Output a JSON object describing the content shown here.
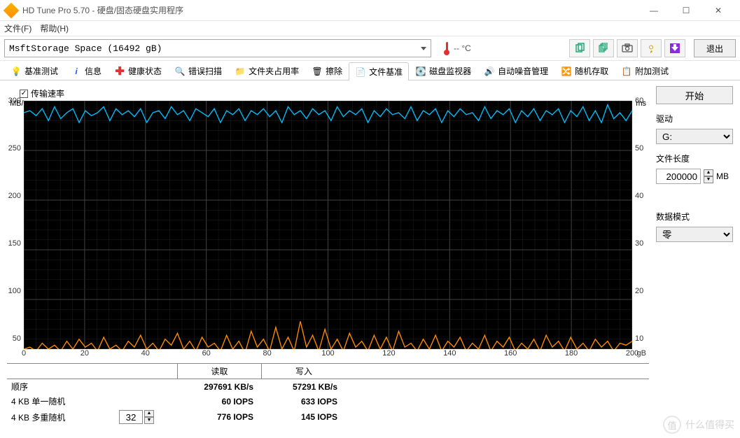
{
  "titlebar": {
    "title": "HD Tune Pro 5.70 - 硬盘/固态硬盘实用程序"
  },
  "menubar": {
    "file": "文件(F)",
    "help": "帮助(H)"
  },
  "toolbar": {
    "drive_name": "MsftStorage Space (16492 gB)",
    "temp_text": "-- °C",
    "exit": "退出"
  },
  "tabs": [
    {
      "label": "基准测试"
    },
    {
      "label": "信息"
    },
    {
      "label": "健康状态"
    },
    {
      "label": "错误扫描"
    },
    {
      "label": "文件夹占用率"
    },
    {
      "label": "擦除"
    },
    {
      "label": "文件基准",
      "active": true
    },
    {
      "label": "磁盘监视器"
    },
    {
      "label": "自动噪音管理"
    },
    {
      "label": "随机存取"
    },
    {
      "label": "附加测试"
    }
  ],
  "sidebar": {
    "start": "开始",
    "drive_label": "驱动",
    "drive_value": "G:",
    "filelen_label": "文件长度",
    "filelen_value": "200000",
    "filelen_unit": "MB",
    "pattern_label": "数据模式",
    "pattern_value": "零"
  },
  "checkbox": {
    "transfer_rate": "传输速率",
    "checked": true
  },
  "chart": {
    "bg": "#000000",
    "grid_color": "#404040",
    "grid_minor_color": "#202020",
    "line_read_color": "#00bfff",
    "line_write_color": "#ff8c00",
    "y_left_label": "MB/s",
    "y_right_label": "ms",
    "y_left_min": 50,
    "y_left_max": 300,
    "y_left_ticks": [
      50,
      100,
      150,
      200,
      250,
      300
    ],
    "y_right_min": 10,
    "y_right_max": 60,
    "y_right_ticks": [
      10,
      20,
      30,
      40,
      50,
      60
    ],
    "x_min": 0,
    "x_max": 200,
    "x_unit": "gB",
    "x_ticks": [
      0,
      20,
      40,
      60,
      80,
      100,
      120,
      140,
      160,
      180,
      200
    ],
    "series_read": [
      288,
      290,
      285,
      292,
      280,
      294,
      282,
      288,
      292,
      278,
      290,
      285,
      288,
      294,
      280,
      292,
      286,
      290,
      284,
      292,
      278,
      288,
      290,
      282,
      294,
      286,
      290,
      280,
      292,
      288,
      284,
      292,
      278,
      290,
      286,
      292,
      280,
      290,
      286,
      292,
      284,
      290,
      278,
      294,
      286,
      290,
      282,
      292,
      286,
      290,
      280,
      294,
      284,
      290,
      286,
      292,
      278,
      290,
      284,
      292,
      286,
      288,
      282,
      294,
      280,
      290,
      286,
      292,
      278,
      290,
      284,
      292,
      286,
      288,
      280,
      294,
      282,
      290,
      286,
      292,
      278,
      290,
      284,
      292,
      280,
      290,
      286,
      292,
      278,
      290,
      284,
      294,
      280,
      290,
      278,
      296,
      282,
      288,
      280,
      290
    ],
    "series_write": [
      50,
      52,
      48,
      56,
      50,
      54,
      48,
      58,
      50,
      60,
      52,
      56,
      48,
      62,
      50,
      54,
      48,
      58,
      52,
      64,
      50,
      56,
      48,
      60,
      54,
      66,
      50,
      58,
      48,
      62,
      52,
      56,
      48,
      64,
      50,
      58,
      46,
      68,
      52,
      60,
      48,
      72,
      50,
      62,
      48,
      78,
      52,
      64,
      48,
      70,
      50,
      60,
      48,
      66,
      52,
      58,
      48,
      64,
      50,
      62,
      48,
      68,
      52,
      56,
      48,
      60,
      50,
      64,
      48,
      58,
      52,
      62,
      48,
      56,
      50,
      64,
      48,
      58,
      52,
      62,
      48,
      56,
      50,
      60,
      48,
      64,
      52,
      58,
      48,
      62,
      50,
      56,
      48,
      60,
      52,
      58,
      48,
      56,
      54,
      58
    ]
  },
  "results": {
    "headers": {
      "blank": "",
      "read": "读取",
      "write": "写入"
    },
    "rows": [
      {
        "label": "顺序",
        "read": "297691 KB/s",
        "write": "57291 KB/s"
      },
      {
        "label": "4 KB 单一随机",
        "read": "60 IOPS",
        "write": "633 IOPS"
      },
      {
        "label": "4 KB 多重随机",
        "extra": "32",
        "read": "776 IOPS",
        "write": "145 IOPS"
      }
    ]
  },
  "watermark": {
    "badge": "值",
    "text": "什么值得买"
  }
}
